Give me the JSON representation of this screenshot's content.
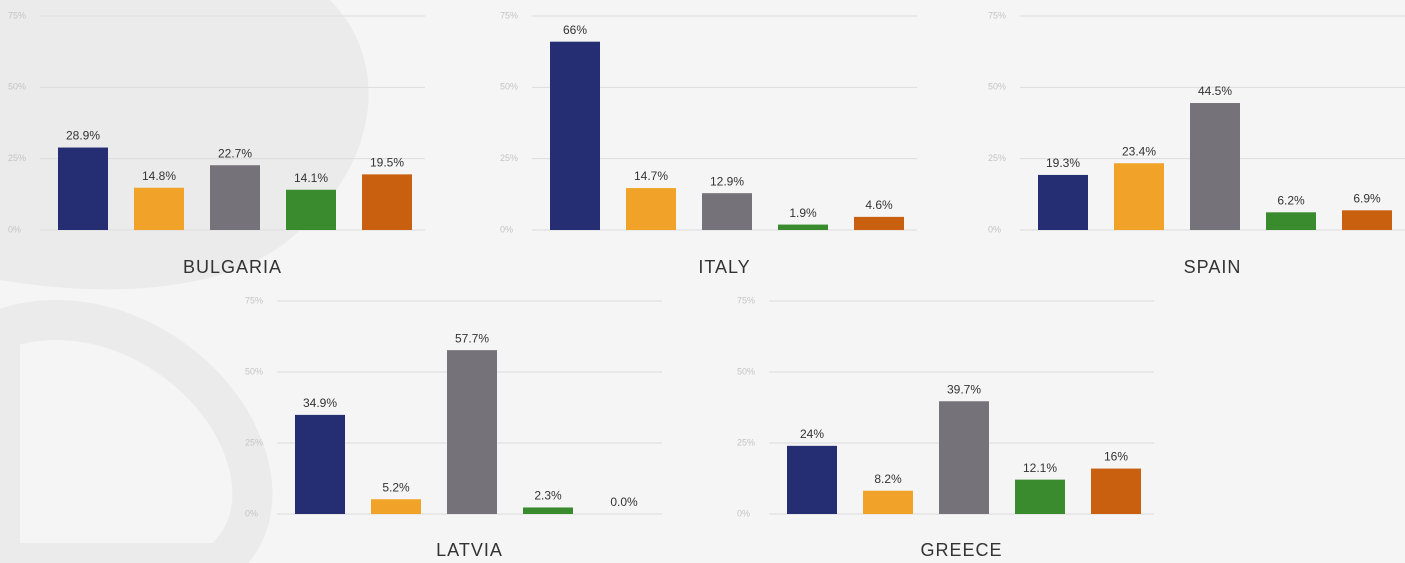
{
  "chart_data": [
    {
      "type": "bar",
      "title": "BULGARIA",
      "values": [
        28.9,
        14.8,
        22.7,
        14.1,
        19.5
      ],
      "value_labels": [
        "28.9%",
        "14.8%",
        "22.7%",
        "14.1%",
        "19.5%"
      ],
      "colors": [
        "#252e72",
        "#f0a328",
        "#767279",
        "#3a8a2e",
        "#c9600f"
      ],
      "ylim": [
        0,
        75
      ],
      "yticks": [
        {
          "value": 0,
          "label": "0%"
        },
        {
          "value": 25,
          "label": "25%"
        },
        {
          "value": 50,
          "label": "50%"
        },
        {
          "value": 75,
          "label": "75%"
        }
      ],
      "grid": true
    },
    {
      "type": "bar",
      "title": "ITALY",
      "values": [
        66,
        14.7,
        12.9,
        1.9,
        4.6
      ],
      "value_labels": [
        "66%",
        "14.7%",
        "12.9%",
        "1.9%",
        "4.6%"
      ],
      "colors": [
        "#252e72",
        "#f0a328",
        "#767279",
        "#3a8a2e",
        "#c9600f"
      ],
      "ylim": [
        0,
        75
      ],
      "yticks": [
        {
          "value": 0,
          "label": "0%"
        },
        {
          "value": 25,
          "label": "25%"
        },
        {
          "value": 50,
          "label": "50%"
        },
        {
          "value": 75,
          "label": "75%"
        }
      ],
      "grid": true
    },
    {
      "type": "bar",
      "title": "SPAIN",
      "values": [
        19.3,
        23.4,
        44.5,
        6.2,
        6.9
      ],
      "value_labels": [
        "19.3%",
        "23.4%",
        "44.5%",
        "6.2%",
        "6.9%"
      ],
      "colors": [
        "#252e72",
        "#f0a328",
        "#767279",
        "#3a8a2e",
        "#c9600f"
      ],
      "ylim": [
        0,
        75
      ],
      "yticks": [
        {
          "value": 0,
          "label": "0%"
        },
        {
          "value": 25,
          "label": "25%"
        },
        {
          "value": 50,
          "label": "50%"
        },
        {
          "value": 75,
          "label": "75%"
        }
      ],
      "grid": true
    },
    {
      "type": "bar",
      "title": "LATVIA",
      "values": [
        34.9,
        5.2,
        57.7,
        2.3,
        0.0
      ],
      "value_labels": [
        "34.9%",
        "5.2%",
        "57.7%",
        "2.3%",
        "0.0%"
      ],
      "colors": [
        "#252e72",
        "#f0a328",
        "#767279",
        "#3a8a2e",
        "#c9600f"
      ],
      "ylim": [
        0,
        75
      ],
      "yticks": [
        {
          "value": 0,
          "label": "0%"
        },
        {
          "value": 25,
          "label": "25%"
        },
        {
          "value": 50,
          "label": "50%"
        },
        {
          "value": 75,
          "label": "75%"
        }
      ],
      "grid": true
    },
    {
      "type": "bar",
      "title": "GREECE",
      "values": [
        24,
        8.2,
        39.7,
        12.1,
        16
      ],
      "value_labels": [
        "24%",
        "8.2%",
        "39.7%",
        "12.1%",
        "16%"
      ],
      "colors": [
        "#252e72",
        "#f0a328",
        "#767279",
        "#3a8a2e",
        "#c9600f"
      ],
      "ylim": [
        0,
        75
      ],
      "yticks": [
        {
          "value": 0,
          "label": "0%"
        },
        {
          "value": 25,
          "label": "25%"
        },
        {
          "value": 50,
          "label": "50%"
        },
        {
          "value": 75,
          "label": "75%"
        }
      ],
      "grid": true
    }
  ]
}
